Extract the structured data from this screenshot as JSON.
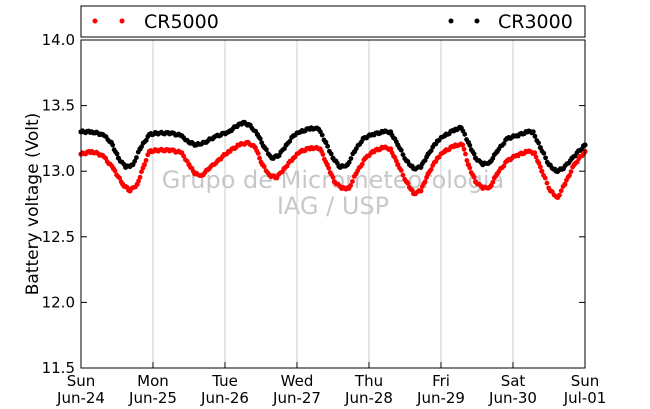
{
  "chart_data": {
    "type": "scatter",
    "ylabel": "Battery voltage (Volt)",
    "ylim": [
      11.5,
      14.0
    ],
    "yticks": [
      11.5,
      12.0,
      12.5,
      13.0,
      13.5,
      14.0
    ],
    "ytick_labels": [
      "11.5",
      "12.0",
      "12.5",
      "13.0",
      "13.5",
      "14.0"
    ],
    "xlim": [
      0,
      7
    ],
    "xticks": [
      {
        "day": "Sun",
        "date": "Jun-24"
      },
      {
        "day": "Mon",
        "date": "Jun-25"
      },
      {
        "day": "Tue",
        "date": "Jun-26"
      },
      {
        "day": "Wed",
        "date": "Jun-27"
      },
      {
        "day": "Thu",
        "date": "Jun-28"
      },
      {
        "day": "Fri",
        "date": "Jun-29"
      },
      {
        "day": "Sat",
        "date": "Jun-30"
      },
      {
        "day": "Sun",
        "date": "Jul-01"
      }
    ],
    "grid": "x",
    "legend_placement": "top",
    "watermark": [
      "Grupo de Micrometeorologia",
      "IAG / USP"
    ],
    "series": [
      {
        "name": "CR5000",
        "color": "#ff0000",
        "points": [
          [
            0.0,
            13.13
          ],
          [
            0.15,
            13.15
          ],
          [
            0.3,
            13.12
          ],
          [
            0.45,
            13.02
          ],
          [
            0.58,
            12.9
          ],
          [
            0.68,
            12.85
          ],
          [
            0.78,
            12.9
          ],
          [
            0.88,
            13.05
          ],
          [
            0.95,
            13.15
          ],
          [
            1.05,
            13.16
          ],
          [
            1.25,
            13.16
          ],
          [
            1.4,
            13.14
          ],
          [
            1.5,
            13.05
          ],
          [
            1.58,
            12.98
          ],
          [
            1.68,
            12.97
          ],
          [
            1.78,
            13.02
          ],
          [
            1.9,
            13.08
          ],
          [
            2.05,
            13.15
          ],
          [
            2.2,
            13.2
          ],
          [
            2.32,
            13.22
          ],
          [
            2.42,
            13.18
          ],
          [
            2.52,
            13.05
          ],
          [
            2.62,
            12.97
          ],
          [
            2.72,
            12.95
          ],
          [
            2.82,
            13.02
          ],
          [
            2.95,
            13.1
          ],
          [
            3.05,
            13.15
          ],
          [
            3.2,
            13.18
          ],
          [
            3.32,
            13.17
          ],
          [
            3.42,
            13.05
          ],
          [
            3.52,
            12.92
          ],
          [
            3.62,
            12.87
          ],
          [
            3.72,
            12.87
          ],
          [
            3.82,
            12.98
          ],
          [
            3.95,
            13.1
          ],
          [
            4.05,
            13.15
          ],
          [
            4.2,
            13.18
          ],
          [
            4.3,
            13.17
          ],
          [
            4.4,
            13.05
          ],
          [
            4.52,
            12.92
          ],
          [
            4.62,
            12.83
          ],
          [
            4.72,
            12.85
          ],
          [
            4.82,
            12.98
          ],
          [
            4.95,
            13.1
          ],
          [
            5.05,
            13.15
          ],
          [
            5.2,
            13.2
          ],
          [
            5.3,
            13.2
          ],
          [
            5.38,
            13.05
          ],
          [
            5.48,
            12.92
          ],
          [
            5.58,
            12.87
          ],
          [
            5.68,
            12.88
          ],
          [
            5.78,
            12.98
          ],
          [
            5.92,
            13.08
          ],
          [
            6.05,
            13.12
          ],
          [
            6.2,
            13.15
          ],
          [
            6.3,
            13.14
          ],
          [
            6.4,
            13.0
          ],
          [
            6.52,
            12.85
          ],
          [
            6.62,
            12.8
          ],
          [
            6.72,
            12.9
          ],
          [
            6.85,
            13.05
          ],
          [
            7.0,
            13.15
          ]
        ]
      },
      {
        "name": "CR3000",
        "color": "#000000",
        "points": [
          [
            0.0,
            13.3
          ],
          [
            0.15,
            13.3
          ],
          [
            0.3,
            13.28
          ],
          [
            0.42,
            13.22
          ],
          [
            0.52,
            13.1
          ],
          [
            0.62,
            13.03
          ],
          [
            0.72,
            13.05
          ],
          [
            0.82,
            13.17
          ],
          [
            0.95,
            13.28
          ],
          [
            1.05,
            13.29
          ],
          [
            1.25,
            13.29
          ],
          [
            1.4,
            13.27
          ],
          [
            1.5,
            13.22
          ],
          [
            1.6,
            13.2
          ],
          [
            1.72,
            13.22
          ],
          [
            1.85,
            13.26
          ],
          [
            2.05,
            13.3
          ],
          [
            2.15,
            13.34
          ],
          [
            2.25,
            13.37
          ],
          [
            2.35,
            13.35
          ],
          [
            2.45,
            13.28
          ],
          [
            2.55,
            13.18
          ],
          [
            2.65,
            13.1
          ],
          [
            2.75,
            13.12
          ],
          [
            2.85,
            13.2
          ],
          [
            2.95,
            13.27
          ],
          [
            3.05,
            13.3
          ],
          [
            3.2,
            13.33
          ],
          [
            3.3,
            13.32
          ],
          [
            3.4,
            13.22
          ],
          [
            3.5,
            13.1
          ],
          [
            3.6,
            13.03
          ],
          [
            3.7,
            13.05
          ],
          [
            3.8,
            13.15
          ],
          [
            3.92,
            13.25
          ],
          [
            4.05,
            13.28
          ],
          [
            4.2,
            13.3
          ],
          [
            4.3,
            13.3
          ],
          [
            4.4,
            13.2
          ],
          [
            4.52,
            13.08
          ],
          [
            4.62,
            13.02
          ],
          [
            4.72,
            13.03
          ],
          [
            4.82,
            13.13
          ],
          [
            4.95,
            13.23
          ],
          [
            5.05,
            13.27
          ],
          [
            5.2,
            13.32
          ],
          [
            5.28,
            13.33
          ],
          [
            5.38,
            13.22
          ],
          [
            5.48,
            13.1
          ],
          [
            5.58,
            13.05
          ],
          [
            5.68,
            13.07
          ],
          [
            5.78,
            13.15
          ],
          [
            5.92,
            13.25
          ],
          [
            6.05,
            13.27
          ],
          [
            6.2,
            13.3
          ],
          [
            6.28,
            13.3
          ],
          [
            6.38,
            13.18
          ],
          [
            6.5,
            13.05
          ],
          [
            6.6,
            13.0
          ],
          [
            6.7,
            13.02
          ],
          [
            6.82,
            13.1
          ],
          [
            7.0,
            13.2
          ]
        ]
      }
    ]
  }
}
